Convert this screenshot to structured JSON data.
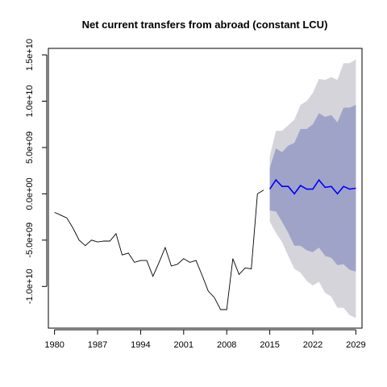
{
  "chart_data": {
    "type": "line",
    "title": "Net current transfers from abroad (constant LCU)",
    "xlabel": "",
    "ylabel": "",
    "xlim": [
      1979,
      2030
    ],
    "ylim": [
      -14500000000,
      15700000000
    ],
    "x_ticks": [
      1980,
      1987,
      1994,
      2001,
      2008,
      2015,
      2022,
      2029
    ],
    "x_tick_labels": [
      "1980",
      "1987",
      "1994",
      "2001",
      "2008",
      "2015",
      "2022",
      "2029"
    ],
    "y_ticks": [
      -10000000000,
      -5000000000,
      0,
      5000000000,
      10000000000,
      15000000000
    ],
    "y_tick_labels": [
      "-1.0e+10",
      "-5.0e+09",
      "0.0e+00",
      "5.0e+09",
      "1.0e+10",
      "1.5e+10"
    ],
    "colors": {
      "history": "#000000",
      "forecast": "#0000ff",
      "band_80": "#a0a3c8",
      "band_95": "#d4d4da"
    },
    "series": [
      {
        "role": "history",
        "x": [
          1980,
          1981,
          1982,
          1983,
          1984,
          1985,
          1986,
          1987,
          1988,
          1989,
          1990,
          1991,
          1992,
          1993,
          1994,
          1995,
          1996,
          1997,
          1998,
          1999,
          2000,
          2001,
          2002,
          2003,
          2004,
          2005,
          2006,
          2007,
          2008,
          2009,
          2010,
          2011,
          2012,
          2013,
          2014
        ],
        "y": [
          -2000000000,
          -2300000000,
          -2600000000,
          -3700000000,
          -5000000000,
          -5600000000,
          -5000000000,
          -5200000000,
          -5100000000,
          -5100000000,
          -4300000000,
          -6600000000,
          -6400000000,
          -7400000000,
          -7200000000,
          -7200000000,
          -8900000000,
          -7400000000,
          -5800000000,
          -7800000000,
          -7600000000,
          -7000000000,
          -7400000000,
          -7200000000,
          -8800000000,
          -10500000000,
          -11200000000,
          -12500000000,
          -12500000000,
          -7000000000,
          -8700000000,
          -8000000000,
          -8100000000,
          0,
          400000000
        ]
      },
      {
        "role": "forecast",
        "x": [
          2015,
          2016,
          2017,
          2018,
          2019,
          2020,
          2021,
          2022,
          2023,
          2024,
          2025,
          2026,
          2027,
          2028,
          2029
        ],
        "y": [
          500000000,
          1500000000,
          800000000,
          800000000,
          0,
          900000000,
          500000000,
          500000000,
          1500000000,
          700000000,
          800000000,
          0,
          800000000,
          500000000,
          600000000
        ],
        "lo80": [
          -1800000000,
          -1900000000,
          -3000000000,
          -4200000000,
          -5600000000,
          -5600000000,
          -6100000000,
          -6300000000,
          -5800000000,
          -6700000000,
          -6900000000,
          -7700000000,
          -7600000000,
          -8200000000,
          -8400000000
        ],
        "hi80": [
          2800000000,
          4900000000,
          4500000000,
          5200000000,
          5500000000,
          7000000000,
          7000000000,
          7500000000,
          8700000000,
          8300000000,
          8500000000,
          7700000000,
          9300000000,
          9300000000,
          9600000000
        ],
        "lo95": [
          -3000000000,
          -4200000000,
          -5200000000,
          -6700000000,
          -8100000000,
          -8500000000,
          -9400000000,
          -9900000000,
          -9500000000,
          -10700000000,
          -11100000000,
          -12300000000,
          -12300000000,
          -13100000000,
          -13400000000
        ],
        "hi95": [
          4000000000,
          6800000000,
          6800000000,
          7400000000,
          8000000000,
          9600000000,
          10000000000,
          10900000000,
          12400000000,
          12300000000,
          12600000000,
          12300000000,
          14100000000,
          14100000000,
          14500000000
        ]
      }
    ]
  }
}
